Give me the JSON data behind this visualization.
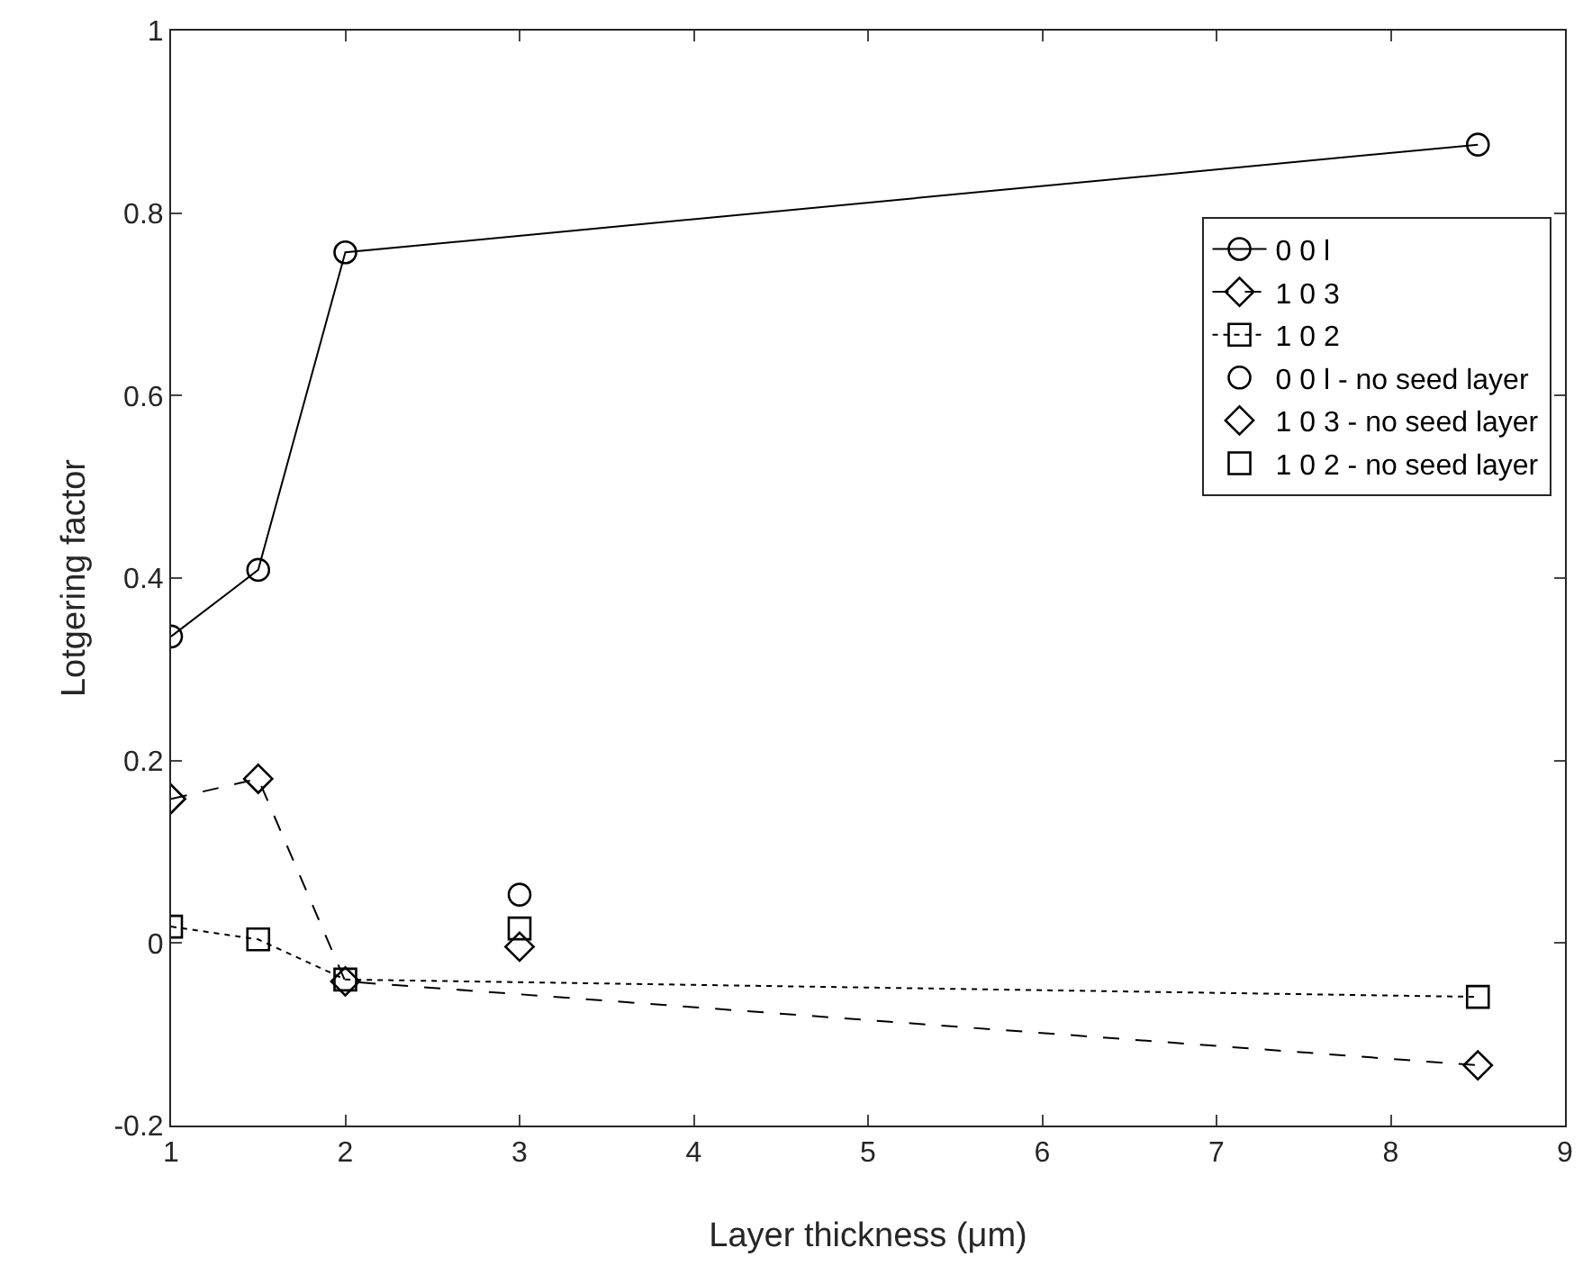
{
  "chart_data": {
    "type": "line",
    "xlabel": "Layer thickness (μm)",
    "ylabel": "Lotgering factor",
    "xlim": [
      1,
      9
    ],
    "xticks": [
      1,
      2,
      3,
      4,
      5,
      6,
      7,
      8,
      9
    ],
    "ylim": [
      -0.2,
      1
    ],
    "yticks": [
      -0.2,
      0,
      0.2,
      0.4,
      0.6,
      0.8,
      1
    ],
    "grid": false,
    "legend": "top right",
    "series": [
      {
        "name": "0 0 l",
        "color": "#000000",
        "marker": "circle",
        "line_style": "solid",
        "x": [
          1,
          1.5,
          2,
          8.5
        ],
        "values": [
          0.336,
          0.409,
          0.757,
          0.875
        ]
      },
      {
        "name": "1 0 3",
        "color": "#000000",
        "marker": "diamond",
        "line_style": "dashed",
        "x": [
          1,
          1.5,
          2,
          8.5
        ],
        "values": [
          0.158,
          0.18,
          -0.042,
          -0.134
        ]
      },
      {
        "name": "1 0 2",
        "color": "#000000",
        "marker": "square",
        "line_style": "dotted",
        "x": [
          1,
          1.5,
          2,
          8.5
        ],
        "values": [
          0.018,
          0.004,
          -0.04,
          -0.059
        ]
      },
      {
        "name": "0 0 l - no seed layer",
        "type": "scatter",
        "color": "#000000",
        "marker": "circle",
        "x": [
          3
        ],
        "values": [
          0.053
        ]
      },
      {
        "name": "1 0 3 - no seed layer",
        "type": "scatter",
        "color": "#000000",
        "marker": "diamond",
        "x": [
          3
        ],
        "values": [
          -0.004
        ]
      },
      {
        "name": "1 0 2 - no seed layer",
        "type": "scatter",
        "color": "#000000",
        "marker": "square",
        "x": [
          3
        ],
        "values": [
          0.016
        ]
      }
    ]
  }
}
